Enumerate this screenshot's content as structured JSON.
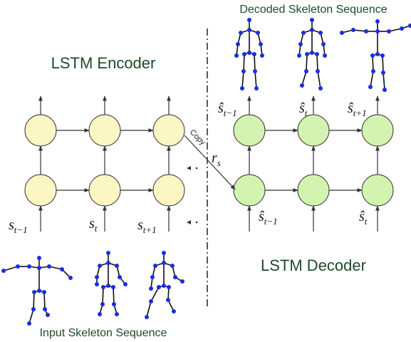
{
  "titles": {
    "decoded": "Decoded Skeleton Sequence",
    "encoder": "LSTM Encoder",
    "decoder": "LSTM Decoder",
    "input": "Input Skeleton Sequence"
  },
  "encoder_inputs": [
    {
      "base": "s",
      "sub": "t−1"
    },
    {
      "base": "s",
      "sub": "t"
    },
    {
      "base": "s",
      "sub": "t+1"
    }
  ],
  "decoder_outputs": [
    {
      "base": "ŝ",
      "sub": "t−1"
    },
    {
      "base": "ŝ",
      "sub": "t"
    },
    {
      "base": "ŝ",
      "sub": "t+1"
    }
  ],
  "decoder_inputs": [
    {
      "base": "ŝ",
      "sub": "t−1"
    },
    {
      "base": "ŝ",
      "sub": "t"
    }
  ],
  "copy": {
    "label": "Copy",
    "vector": {
      "base": "r",
      "sub": "s"
    }
  }
}
